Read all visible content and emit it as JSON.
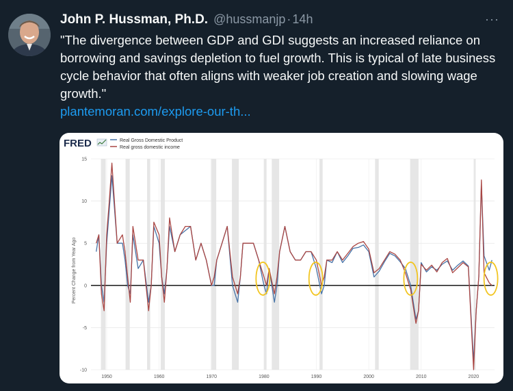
{
  "tweet": {
    "author_name": "John P. Hussman, Ph.D.",
    "handle": "@hussmanjp",
    "separator": "·",
    "time": "14h",
    "more_label": "···",
    "text": "\"The divergence between GDP and GDI suggests an increased reliance on borrowing and savings depletion to fuel growth. This is typical of late business cycle behavior that often aligns with weaker job creation and slowing wage growth.\"",
    "link": "plantemoran.com/explore-our-th..."
  },
  "chart_data": {
    "type": "line",
    "source_logo": "FRED",
    "title": "",
    "xlabel": "",
    "ylabel": "Percent Change from Year Ago",
    "xlim": [
      1947,
      2024
    ],
    "ylim": [
      -10,
      15
    ],
    "x_ticks": [
      "1950",
      "1960",
      "1970",
      "1980",
      "1990",
      "2000",
      "2010",
      "2020"
    ],
    "y_ticks": [
      "15",
      "10",
      "5",
      "0",
      "-5",
      "-10"
    ],
    "grid": true,
    "legend_position": "top-left",
    "colors": {
      "gdp": "#4572a7",
      "gdi": "#aa4643",
      "highlight": "#f2c521",
      "recession": "#e6e6e6"
    },
    "recessions": [
      [
        1948.9,
        1949.8
      ],
      [
        1953.6,
        1954.4
      ],
      [
        1957.7,
        1958.3
      ],
      [
        1960.3,
        1961.1
      ],
      [
        1969.9,
        1970.9
      ],
      [
        1973.9,
        1975.2
      ],
      [
        1980.0,
        1980.5
      ],
      [
        1981.5,
        1982.9
      ],
      [
        1990.6,
        1991.2
      ],
      [
        2001.2,
        2001.9
      ],
      [
        2007.9,
        2009.5
      ],
      [
        2020.1,
        2020.4
      ]
    ],
    "highlights": [
      1979.8,
      1989.9,
      2008.0,
      2023.3
    ],
    "series": [
      {
        "name": "Real Gross Domestic Product",
        "x": [
          1948,
          1948.5,
          1949,
          1949.5,
          1950,
          1950.5,
          1951,
          1952,
          1953,
          1953.5,
          1954,
          1954.5,
          1955,
          1956,
          1957,
          1958,
          1958.5,
          1959,
          1960,
          1960.5,
          1961,
          1961.5,
          1962,
          1963,
          1964,
          1965,
          1966,
          1967,
          1968,
          1969,
          1970,
          1970.5,
          1971,
          1972,
          1973,
          1974,
          1975,
          1975.5,
          1976,
          1977,
          1978,
          1979,
          1980,
          1980.5,
          1981,
          1982,
          1982.5,
          1983,
          1984,
          1985,
          1986,
          1987,
          1988,
          1989,
          1990,
          1991,
          1991.5,
          1992,
          1993,
          1994,
          1995,
          1996,
          1997,
          1998,
          1999,
          2000,
          2001,
          2002,
          2003,
          2004,
          2005,
          2006,
          2007,
          2008,
          2009,
          2009.5,
          2010,
          2011,
          2012,
          2013,
          2014,
          2015,
          2016,
          2017,
          2018,
          2019,
          2020,
          2020.5,
          2021,
          2021.5,
          2022,
          2023,
          2023.5
        ],
        "values": [
          4,
          6,
          0,
          -2,
          5,
          9,
          13,
          5,
          5,
          3,
          0,
          -1,
          6,
          2,
          3,
          -2,
          0,
          7,
          5,
          1,
          -1,
          2,
          7,
          4,
          6,
          6.5,
          7,
          3,
          5,
          3,
          0,
          0,
          3,
          5,
          7,
          0,
          -2,
          1,
          5,
          5,
          5,
          3,
          0,
          -1,
          2,
          -2,
          0,
          4,
          7,
          4,
          3,
          3,
          4,
          4,
          2,
          -1,
          0,
          3,
          2.7,
          4,
          2.7,
          3.5,
          4.4,
          4.5,
          4.8,
          4,
          1,
          1.7,
          2.8,
          3.8,
          3.5,
          2.8,
          2,
          0,
          -4,
          -3,
          2.7,
          1.6,
          2.2,
          1.8,
          2.5,
          2.9,
          1.8,
          2.4,
          2.9,
          2.3,
          -9,
          -3,
          1,
          12,
          3.5,
          1.8,
          3
        ]
      },
      {
        "name": "Real gross domestic income",
        "x": [
          1948,
          1948.5,
          1949,
          1949.5,
          1950,
          1950.5,
          1951,
          1952,
          1953,
          1953.5,
          1954,
          1954.5,
          1955,
          1956,
          1957,
          1958,
          1958.5,
          1959,
          1960,
          1960.5,
          1961,
          1961.5,
          1962,
          1963,
          1964,
          1965,
          1966,
          1967,
          1968,
          1969,
          1970,
          1970.5,
          1971,
          1972,
          1973,
          1974,
          1975,
          1975.5,
          1976,
          1977,
          1978,
          1979,
          1980,
          1980.5,
          1981,
          1982,
          1982.5,
          1983,
          1984,
          1985,
          1986,
          1987,
          1988,
          1989,
          1990,
          1991,
          1991.5,
          1992,
          1993,
          1994,
          1995,
          1996,
          1997,
          1998,
          1999,
          2000,
          2001,
          2002,
          2003,
          2004,
          2005,
          2006,
          2007,
          2008,
          2009,
          2009.5,
          2010,
          2011,
          2012,
          2013,
          2014,
          2015,
          2016,
          2017,
          2018,
          2019,
          2020,
          2020.5,
          2021,
          2021.5,
          2022,
          2023,
          2023.5
        ],
        "values": [
          5,
          6,
          -1,
          -3,
          6,
          10,
          14.5,
          5,
          6,
          4,
          1,
          -2,
          7,
          3,
          3,
          -3,
          0,
          7.5,
          6,
          1,
          -2,
          2,
          8,
          4,
          6,
          7,
          7,
          3,
          5,
          3,
          0,
          1,
          3,
          5,
          7,
          1,
          -1,
          1,
          5,
          5,
          5,
          3,
          1,
          0,
          2,
          -1,
          1,
          4,
          7,
          4,
          3,
          3,
          4,
          4,
          3,
          0,
          1,
          3,
          3,
          4,
          3,
          3.8,
          4.6,
          5,
          5.2,
          4.3,
          1.5,
          2,
          3,
          4,
          3.7,
          3,
          1.5,
          -0.5,
          -4.5,
          -3,
          2.5,
          1.8,
          2.4,
          1.6,
          2.7,
          3.2,
          1.5,
          2.1,
          2.7,
          2.2,
          -10,
          -3,
          1,
          12.5,
          1.5,
          0.3,
          0
        ]
      }
    ]
  }
}
